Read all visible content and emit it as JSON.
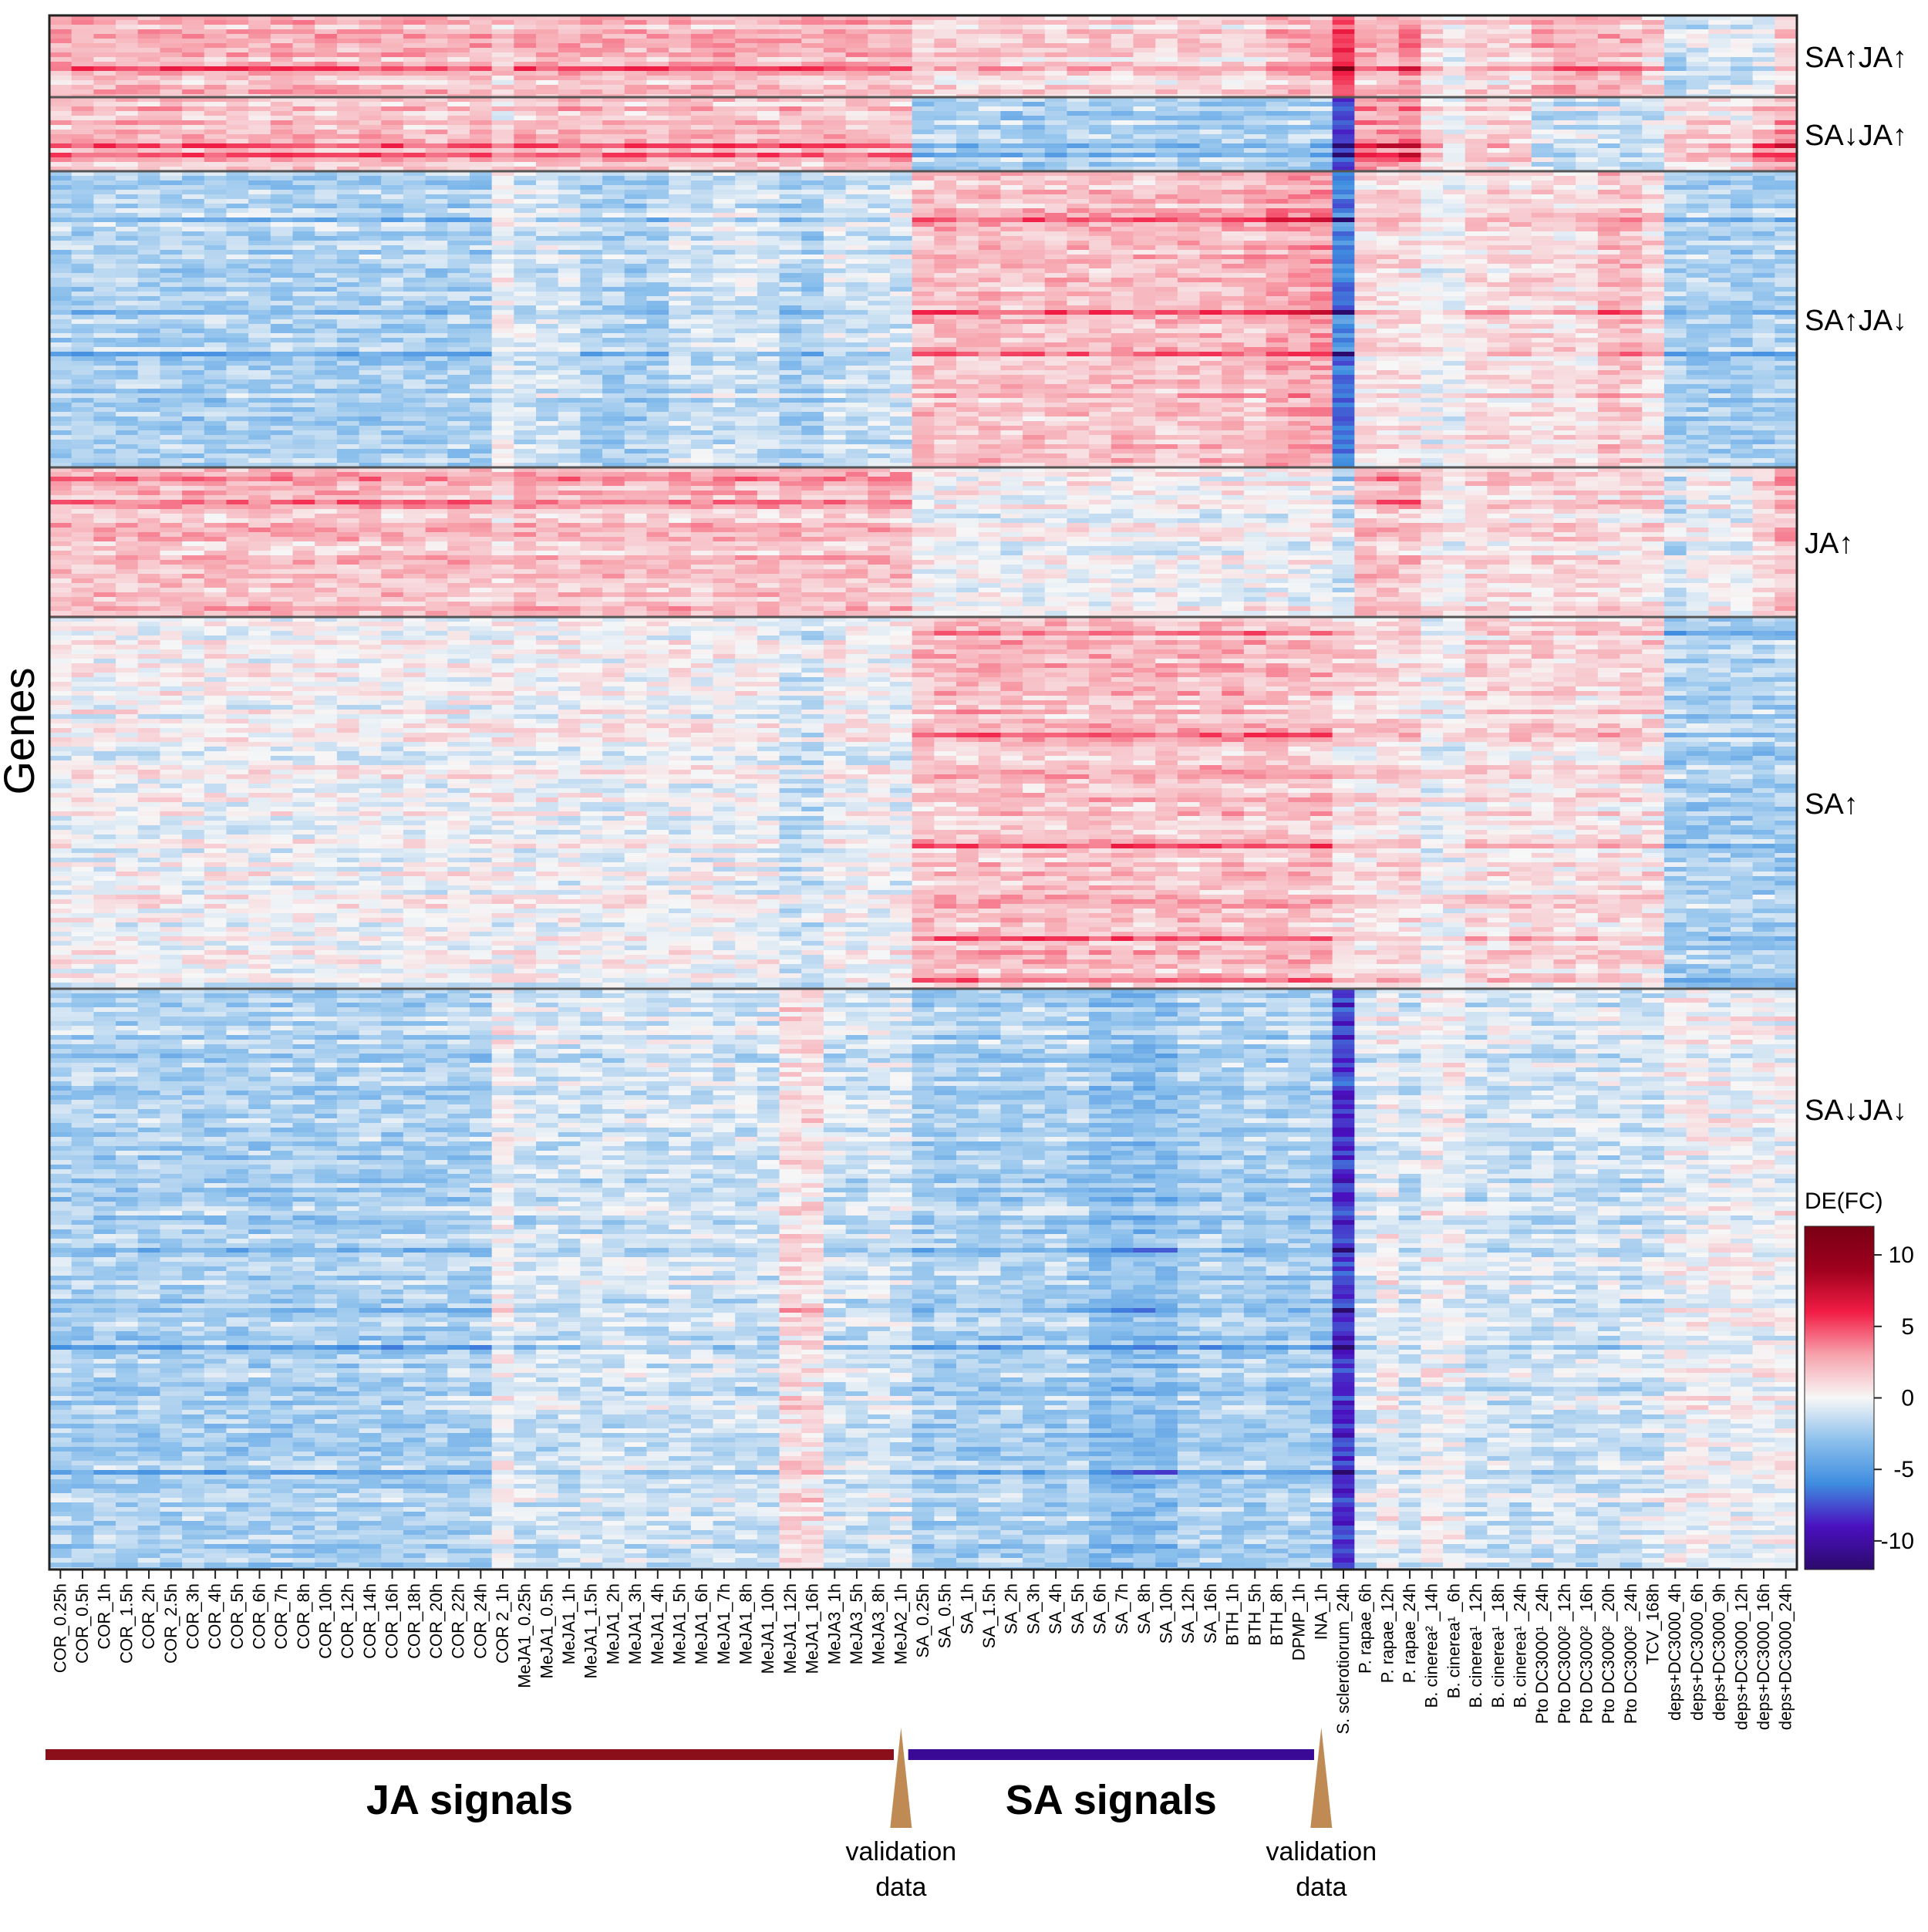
{
  "chart_data": {
    "type": "heatmap",
    "ylabel": "Genes",
    "columns": [
      "COR_0.25h",
      "COR_0.5h",
      "COR_1h",
      "COR_1.5h",
      "COR_2h",
      "COR_2.5h",
      "COR_3h",
      "COR_4h",
      "COR_5h",
      "COR_6h",
      "COR_7h",
      "COR_8h",
      "COR_10h",
      "COR_12h",
      "COR_14h",
      "COR_16h",
      "COR_18h",
      "COR_20h",
      "COR_22h",
      "COR_24h",
      "COR 2_1h",
      "MeJA1_0.25h",
      "MeJA1_0.5h",
      "MeJA1_1h",
      "MeJA1_1.5h",
      "MeJA1_2h",
      "MeJA1_3h",
      "MeJA1_4h",
      "MeJA1_5h",
      "MeJA1_6h",
      "MeJA1_7h",
      "MeJA1_8h",
      "MeJA1_10h",
      "MeJA1_12h",
      "MeJA1_16h",
      "MeJA3_1h",
      "MeJA3_5h",
      "MeJA3_8h",
      "MeJA2_1h",
      "SA_0.25h",
      "SA_0.5h",
      "SA_1h",
      "SA_1.5h",
      "SA_2h",
      "SA_3h",
      "SA_4h",
      "SA_5h",
      "SA_6h",
      "SA_7h",
      "SA_8h",
      "SA_10h",
      "SA_12h",
      "SA_16h",
      "BTH_1h",
      "BTH_5h",
      "BTH_8h",
      "DPMP_1h",
      "INA_1h",
      "S. sclerotiorum_24h",
      "P. rapae_6h",
      "P. rapae_12h",
      "P. rapae_24h",
      "B. cinerea² _14h",
      "B. cinerea¹ _6h",
      "B. cinerea¹ _12h",
      "B. cinerea¹ _18h",
      "B. cinerea¹ _24h",
      "Pto DC3000¹ _24h",
      "Pto DC3000² _12h",
      "Pto DC3000² _16h",
      "Pto DC3000² _20h",
      "Pto DC3000² _24h",
      "TCV_168h",
      "deps+DC3000_4h",
      "deps+DC3000_6h",
      "deps+DC3000_9h",
      "deps+DC3000_12h",
      "deps+DC3000_16h",
      "deps+DC3000_24h"
    ],
    "row_blocks": [
      {
        "label": "SA↑JA↑",
        "pattern": [
          2,
          2,
          2,
          2,
          2,
          2,
          2,
          2,
          2,
          2,
          2,
          2,
          2,
          2,
          2,
          2,
          2,
          2,
          2,
          2,
          1,
          2,
          2,
          2,
          2,
          2,
          2,
          2,
          2,
          2,
          2,
          2,
          2,
          2,
          2,
          2,
          2,
          2,
          2,
          1,
          1,
          1,
          1,
          1,
          1,
          1,
          1,
          1,
          1,
          1,
          1,
          1,
          1,
          1,
          1,
          2,
          2,
          2,
          5,
          2,
          2,
          3,
          1,
          0,
          1,
          1,
          1,
          2,
          2,
          2,
          2,
          2,
          1,
          -2,
          -1,
          -1,
          -1,
          -1,
          1
        ],
        "range_hint": [
          0.45,
          0.55
        ]
      },
      {
        "label": "SA↓JA↑",
        "pattern": [
          2,
          2,
          2,
          2,
          2,
          2,
          2,
          2,
          2,
          2,
          2,
          2,
          2,
          2,
          2,
          2,
          2,
          2,
          2,
          2,
          1,
          2,
          2,
          2,
          2,
          2,
          2,
          2,
          2,
          2,
          2,
          2,
          2,
          2,
          2,
          2,
          2,
          2,
          2,
          -2,
          -2,
          -2,
          -2,
          -2,
          -2,
          -2,
          -2,
          -2,
          -2,
          -2,
          -2,
          -2,
          -2,
          -2,
          -2,
          -2,
          -2,
          -2,
          -8,
          3,
          3,
          4,
          1,
          0,
          1,
          1,
          1,
          -1,
          -1,
          -1,
          -1,
          -1,
          -1,
          1,
          1,
          1,
          1,
          2,
          3
        ],
        "range_hint": [
          0.55,
          0.45
        ]
      },
      {
        "label": "SA↑JA↓",
        "pattern": [
          -2,
          -2,
          -2,
          -2,
          -2,
          -2,
          -2,
          -2,
          -2,
          -2,
          -2,
          -2,
          -2,
          -2,
          -2,
          -2,
          -2,
          -2,
          -2,
          -2,
          0,
          -1,
          -1,
          -1,
          -2,
          -2,
          -2,
          -2,
          -1,
          -1,
          -1,
          -1,
          -1,
          -2,
          -2,
          -1,
          -1,
          -1,
          -1,
          2,
          2,
          2,
          2,
          2,
          2,
          2,
          2,
          2,
          2,
          2,
          2,
          2,
          2,
          2,
          2,
          3,
          3,
          3,
          -6,
          1,
          1,
          1,
          0,
          0,
          1,
          1,
          1,
          1,
          1,
          1,
          2,
          2,
          1,
          -2,
          -2,
          -2,
          -2,
          -2,
          -2
        ],
        "range_hint": [
          0.5,
          0.5
        ]
      },
      {
        "label": "JA↑",
        "pattern": [
          2,
          2,
          2,
          2,
          2,
          2,
          2,
          2,
          2,
          2,
          2,
          2,
          2,
          2,
          2,
          2,
          2,
          2,
          2,
          2,
          1,
          2,
          2,
          2,
          2,
          2,
          2,
          2,
          2,
          2,
          2,
          2,
          2,
          2,
          2,
          2,
          2,
          2,
          2,
          0,
          0,
          0,
          0,
          0,
          0,
          0,
          0,
          0,
          0,
          0,
          0,
          0,
          0,
          0,
          0,
          0,
          0,
          0,
          -1,
          2,
          2,
          2,
          1,
          0,
          1,
          1,
          1,
          1,
          1,
          1,
          1,
          1,
          1,
          -1,
          0,
          0,
          0,
          1,
          2
        ],
        "range_hint": [
          0.5,
          0.5
        ]
      },
      {
        "label": "SA↑",
        "pattern": [
          0,
          0,
          0,
          0,
          0,
          0,
          0,
          0,
          0,
          0,
          0,
          0,
          0,
          0,
          0,
          0,
          0,
          0,
          0,
          0,
          0,
          0,
          0,
          0,
          0,
          0,
          0,
          0,
          0,
          0,
          0,
          0,
          0,
          -1,
          -1,
          0,
          0,
          0,
          0,
          2,
          2,
          2,
          2,
          2,
          2,
          2,
          2,
          2,
          2,
          2,
          2,
          2,
          2,
          2,
          2,
          2,
          2,
          2,
          1,
          1,
          1,
          1,
          0,
          0,
          1,
          1,
          1,
          1,
          1,
          1,
          1,
          1,
          1,
          -2,
          -2,
          -2,
          -2,
          -2,
          -2
        ],
        "range_hint": [
          0.5,
          0.5
        ]
      },
      {
        "label": "SA↓JA↓",
        "pattern": [
          -2,
          -2,
          -2,
          -2,
          -2,
          -2,
          -2,
          -2,
          -2,
          -2,
          -2,
          -2,
          -2,
          -2,
          -2,
          -2,
          -2,
          -2,
          -2,
          -2,
          0,
          -1,
          -1,
          -1,
          -1,
          -1,
          -1,
          -1,
          -1,
          -1,
          -1,
          -1,
          -1,
          1,
          1,
          -1,
          -1,
          -1,
          -1,
          -2,
          -2,
          -2,
          -2,
          -2,
          -2,
          -2,
          -2,
          -3,
          -3,
          -3,
          -3,
          -2,
          -2,
          -2,
          -2,
          -2,
          -2,
          -2,
          -8,
          -1,
          0,
          -1,
          0,
          0,
          -1,
          -1,
          -1,
          -1,
          -1,
          -1,
          -1,
          -1,
          -1,
          0,
          0,
          0,
          0,
          0,
          0
        ],
        "range_hint": [
          0.5,
          0.5
        ]
      }
    ],
    "color_scale": {
      "title": "DE(FC)",
      "ticks": [
        "10",
        "5",
        "0",
        "-5",
        "-10"
      ],
      "range": [
        -12,
        12
      ],
      "stops": [
        "#2c0a6b",
        "#4a10c0",
        "#3f8de0",
        "#8cc0ec",
        "#f7f7f7",
        "#f7a3ad",
        "#f21d45",
        "#9e001d",
        "#7a0014"
      ]
    },
    "groups": [
      {
        "label": "JA signals",
        "color": "#8b0f1a"
      },
      {
        "label": "SA signals",
        "color": "#3a0a96"
      }
    ],
    "markers": [
      {
        "label_line1": "validation",
        "label_line2": "data",
        "color": "#c08a55"
      },
      {
        "label_line1": "validation",
        "label_line2": "data",
        "color": "#c08a55"
      }
    ]
  }
}
